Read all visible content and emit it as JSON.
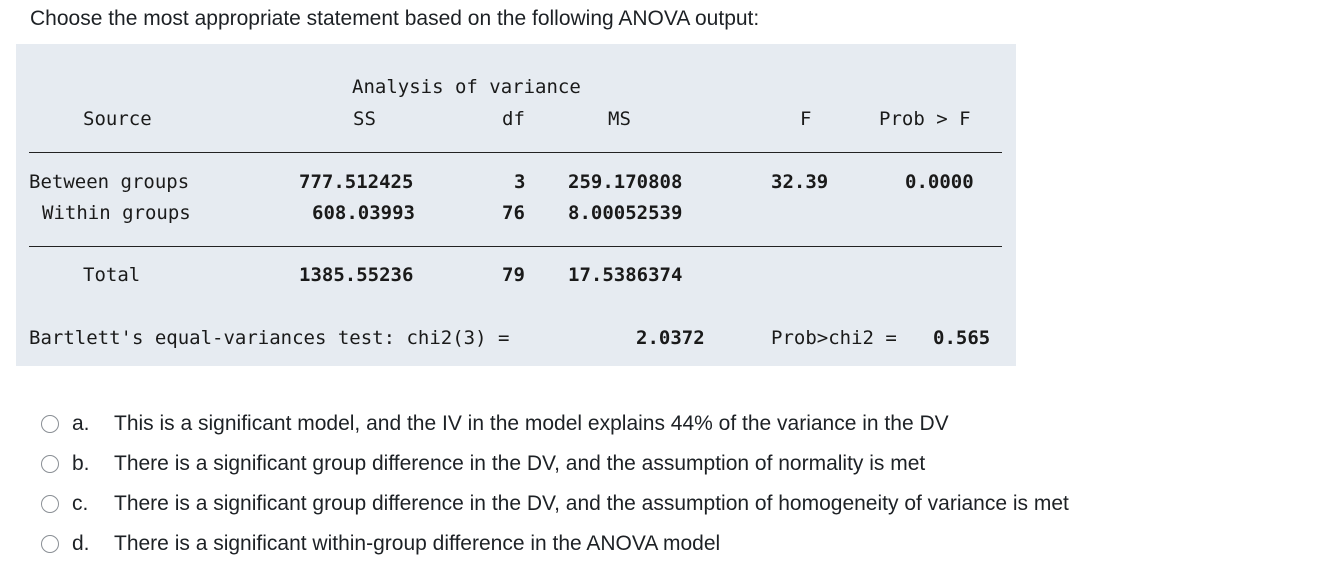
{
  "question": {
    "prompt": "Choose the most appropriate statement based on the following ANOVA output:"
  },
  "anova": {
    "title": "Analysis of variance",
    "headers": {
      "source": "Source",
      "ss": "SS",
      "df": "df",
      "ms": "MS",
      "f": "F",
      "prob": "Prob > F"
    },
    "rows": [
      {
        "source": "Between groups",
        "ss": "777.512425",
        "df": "3",
        "ms": "259.170808",
        "f": "32.39",
        "prob": "0.0000"
      },
      {
        "source": "Within groups",
        "ss": "608.03993",
        "df": "76",
        "ms": "8.00052539",
        "f": "",
        "prob": ""
      },
      {
        "source": "Total",
        "ss": "1385.55236",
        "df": "79",
        "ms": "17.5386374",
        "f": "",
        "prob": ""
      }
    ],
    "bartlett": {
      "label": "Bartlett's equal-variances test: chi2(3) =",
      "chi2": "2.0372",
      "prob_label": "Prob>chi2 =",
      "prob": "0.565"
    }
  },
  "options": [
    {
      "letter": "a.",
      "text": "This is a significant model, and the IV in the model explains 44% of the variance in the DV"
    },
    {
      "letter": "b.",
      "text": "There is a significant group difference in the DV, and the assumption of normality is met"
    },
    {
      "letter": "c.",
      "text": "There is a significant group difference in the DV, and the assumption of homogeneity of variance is met"
    },
    {
      "letter": "d.",
      "text": "There is a significant within-group difference in the ANOVA model"
    }
  ]
}
